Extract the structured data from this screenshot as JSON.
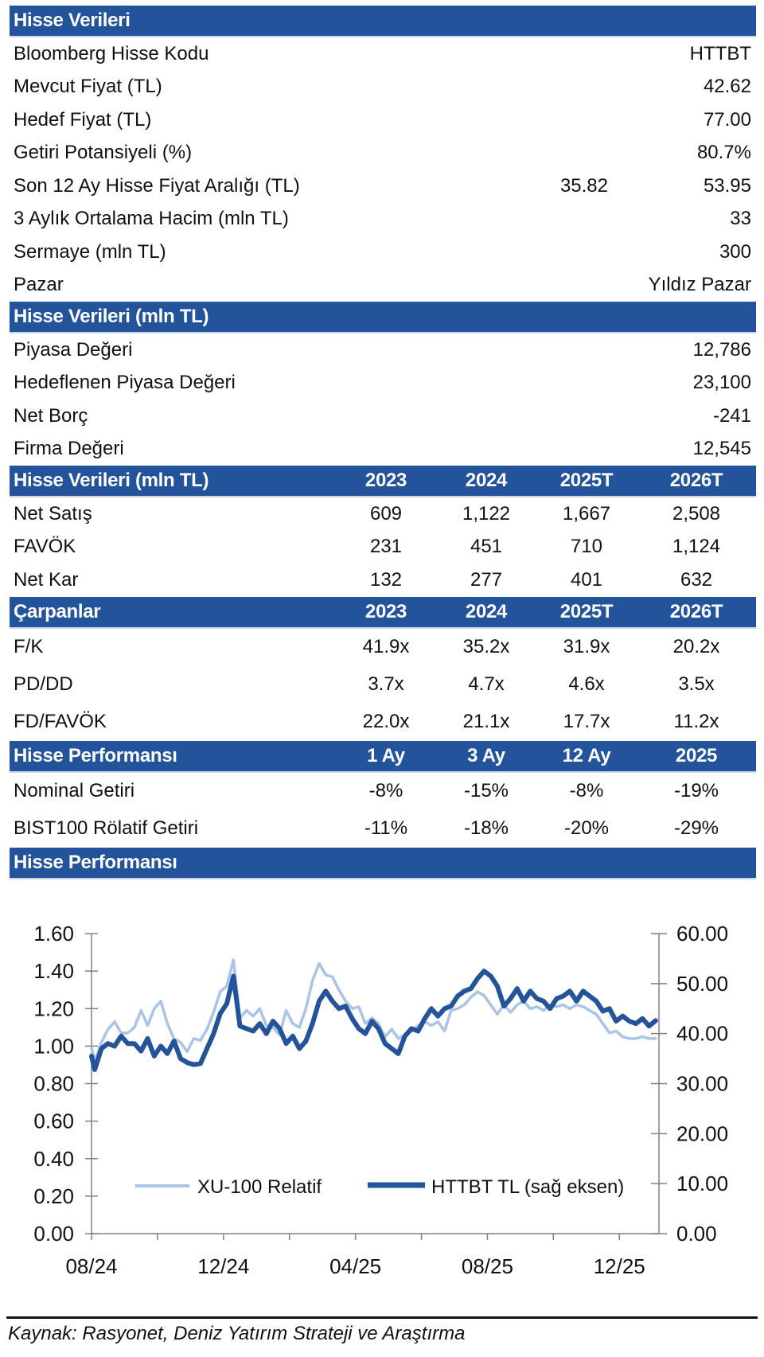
{
  "section1": {
    "title": "Hisse Verileri",
    "rows": [
      {
        "label": "Bloomberg Hisse Kodu",
        "value": "HTTBT"
      },
      {
        "label": "Mevcut Fiyat (TL)",
        "value": "42.62"
      },
      {
        "label": "Hedef Fiyat (TL)",
        "value": "77.00"
      },
      {
        "label": "Getiri Potansiyeli (%)",
        "value": "80.7%"
      },
      {
        "label": "Son 12 Ay Hisse Fiyat Aralığı (TL)",
        "value_low": "35.82",
        "value": "53.95"
      },
      {
        "label": "3 Aylık Ortalama Hacim (mln TL)",
        "value": "33"
      },
      {
        "label": "Sermaye (mln TL)",
        "value": "300"
      },
      {
        "label": "Pazar",
        "value": "Yıldız Pazar"
      }
    ]
  },
  "section2": {
    "title": "Hisse Verileri (mln TL)",
    "rows": [
      {
        "label": "Piyasa Değeri",
        "value": "12,786"
      },
      {
        "label": "Hedeflenen Piyasa Değeri",
        "value": "23,100"
      },
      {
        "label": "Net Borç",
        "value": "-241"
      },
      {
        "label": "Firma Değeri",
        "value": "12,545"
      }
    ]
  },
  "section3": {
    "title": "Hisse Verileri (mln TL)",
    "columns": [
      "2023",
      "2024",
      "2025T",
      "2026T"
    ],
    "rows": [
      {
        "label": "Net Satış",
        "values": [
          "609",
          "1,122",
          "1,667",
          "2,508"
        ]
      },
      {
        "label": "FAVÖK",
        "values": [
          "231",
          "451",
          "710",
          "1,124"
        ]
      },
      {
        "label": "Net Kar",
        "values": [
          "132",
          "277",
          "401",
          "632"
        ]
      }
    ]
  },
  "section4": {
    "title": "Çarpanlar",
    "columns": [
      "2023",
      "2024",
      "2025T",
      "2026T"
    ],
    "rows": [
      {
        "label": "F/K",
        "values": [
          "41.9x",
          "35.2x",
          "31.9x",
          "20.2x"
        ]
      },
      {
        "label": "PD/DD",
        "values": [
          "3.7x",
          "4.7x",
          "4.6x",
          "3.5x"
        ]
      },
      {
        "label": "FD/FAVÖK",
        "values": [
          "22.0x",
          "21.1x",
          "17.7x",
          "11.2x"
        ]
      }
    ]
  },
  "section5": {
    "title": "Hisse Performansı",
    "columns": [
      "1 Ay",
      "3 Ay",
      "12 Ay",
      "2025"
    ],
    "rows": [
      {
        "label": "Nominal Getiri",
        "values": [
          "-8%",
          "-15%",
          "-8%",
          "-19%"
        ]
      },
      {
        "label": "BIST100 Rölatif Getiri",
        "values": [
          "-11%",
          "-18%",
          "-20%",
          "-29%"
        ]
      }
    ]
  },
  "section6": {
    "title": "Hisse Performansı"
  },
  "colors": {
    "header_bg": "#23539a",
    "series_light": "#a9c4e6",
    "series_dark": "#23539a"
  },
  "chart_data": {
    "type": "line",
    "title": "Hisse Performansı",
    "xlabel": "",
    "ylabel": "",
    "x_ticks": [
      "08/24",
      "12/24",
      "04/25",
      "08/25",
      "12/25"
    ],
    "x_range": [
      "08/24",
      "01/26"
    ],
    "y_left": {
      "range": [
        0,
        1.6
      ],
      "ticks": [
        "0.00",
        "0.20",
        "0.40",
        "0.60",
        "0.80",
        "1.00",
        "1.20",
        "1.40",
        "1.60"
      ]
    },
    "y_right": {
      "range": [
        0,
        60
      ],
      "ticks": [
        "0.00",
        "10.00",
        "20.00",
        "30.00",
        "40.00",
        "50.00",
        "60.00"
      ]
    },
    "grid": false,
    "legend": "bottom-center",
    "series": [
      {
        "name": "XU-100 Relatif",
        "axis": "left",
        "x_month": [
          0,
          0.1,
          0.3,
          0.5,
          0.7,
          0.9,
          1.1,
          1.3,
          1.5,
          1.7,
          1.9,
          2.1,
          2.3,
          2.5,
          2.7,
          2.9,
          3.1,
          3.3,
          3.5,
          3.7,
          3.9,
          4.1,
          4.3,
          4.5,
          4.7,
          4.9,
          5.1,
          5.3,
          5.5,
          5.7,
          5.9,
          6.1,
          6.3,
          6.5,
          6.7,
          6.9,
          7.1,
          7.3,
          7.5,
          7.7,
          7.9,
          8.1,
          8.3,
          8.5,
          8.7,
          8.9,
          9.1,
          9.3,
          9.5,
          9.7,
          9.9,
          10.1,
          10.3,
          10.5,
          10.7,
          10.9,
          11.1,
          11.3,
          11.5,
          11.7,
          11.9,
          12.1,
          12.3,
          12.5,
          12.7,
          12.9,
          13.1,
          13.3,
          13.5,
          13.7,
          13.9,
          14.1,
          14.3,
          14.5,
          14.7,
          14.9,
          15.1,
          15.3,
          15.5,
          15.7,
          15.9,
          16.1,
          16.3,
          16.5,
          16.7,
          16.9,
          17.1
        ],
        "values": [
          0.99,
          0.92,
          1.02,
          1.09,
          1.13,
          1.07,
          1.07,
          1.1,
          1.19,
          1.11,
          1.2,
          1.24,
          1.12,
          1.04,
          1.02,
          0.97,
          1.04,
          1.03,
          1.09,
          1.18,
          1.29,
          1.32,
          1.46,
          1.15,
          1.19,
          1.16,
          1.2,
          1.11,
          1.1,
          1.06,
          1.19,
          1.12,
          1.1,
          1.2,
          1.35,
          1.44,
          1.38,
          1.37,
          1.3,
          1.24,
          1.2,
          1.21,
          1.12,
          1.15,
          1.12,
          1.05,
          1.09,
          1.04,
          1.06,
          1.08,
          1.11,
          1.13,
          1.11,
          1.13,
          1.08,
          1.19,
          1.2,
          1.22,
          1.26,
          1.29,
          1.27,
          1.22,
          1.17,
          1.22,
          1.18,
          1.22,
          1.24,
          1.2,
          1.21,
          1.19,
          1.22,
          1.21,
          1.22,
          1.2,
          1.22,
          1.21,
          1.19,
          1.17,
          1.12,
          1.07,
          1.08,
          1.05,
          1.04,
          1.04,
          1.05,
          1.04,
          1.04
        ]
      },
      {
        "name": "HTTBT TL (sağ eksen)",
        "axis": "right",
        "x_month": [
          0,
          0.1,
          0.3,
          0.5,
          0.7,
          0.9,
          1.1,
          1.3,
          1.5,
          1.7,
          1.9,
          2.1,
          2.3,
          2.5,
          2.7,
          2.9,
          3.1,
          3.3,
          3.5,
          3.7,
          3.9,
          4.1,
          4.3,
          4.5,
          4.7,
          4.9,
          5.1,
          5.3,
          5.5,
          5.7,
          5.9,
          6.1,
          6.3,
          6.5,
          6.7,
          6.9,
          7.1,
          7.3,
          7.5,
          7.7,
          7.9,
          8.1,
          8.3,
          8.5,
          8.7,
          8.9,
          9.1,
          9.3,
          9.5,
          9.7,
          9.9,
          10.1,
          10.3,
          10.5,
          10.7,
          10.9,
          11.1,
          11.3,
          11.5,
          11.7,
          11.9,
          12.1,
          12.3,
          12.5,
          12.7,
          12.9,
          13.1,
          13.3,
          13.5,
          13.7,
          13.9,
          14.1,
          14.3,
          14.5,
          14.7,
          14.9,
          15.1,
          15.3,
          15.5,
          15.7,
          15.9,
          16.1,
          16.3,
          16.5,
          16.7,
          16.9,
          17.1
        ],
        "values": [
          35.5,
          32.8,
          37.0,
          38.0,
          37.5,
          39.5,
          38.0,
          38.0,
          36.5,
          39.0,
          35.5,
          37.5,
          36.0,
          38.5,
          35.0,
          34.2,
          33.8,
          34.0,
          37.0,
          40.0,
          44.0,
          46.0,
          51.5,
          41.5,
          41.0,
          40.5,
          42.0,
          40.0,
          42.5,
          41.0,
          38.0,
          39.5,
          37.0,
          38.5,
          42.0,
          46.5,
          48.5,
          46.5,
          45.0,
          45.5,
          43.0,
          41.0,
          40.0,
          42.5,
          41.0,
          38.0,
          37.0,
          36.0,
          39.5,
          41.0,
          40.5,
          43.0,
          45.0,
          43.5,
          45.0,
          45.5,
          47.5,
          48.5,
          49.0,
          51.0,
          52.5,
          51.5,
          49.5,
          45.5,
          47.0,
          49.0,
          46.5,
          48.5,
          47.0,
          46.5,
          45.0,
          47.0,
          47.5,
          48.5,
          46.5,
          48.5,
          47.5,
          46.5,
          44.5,
          45.0,
          42.5,
          43.5,
          42.5,
          42.0,
          43.0,
          41.5,
          42.6
        ]
      }
    ]
  },
  "footer": {
    "source": "Kaynak: Rasyonet, Deniz Yatırım Strateji ve Araştırma"
  }
}
